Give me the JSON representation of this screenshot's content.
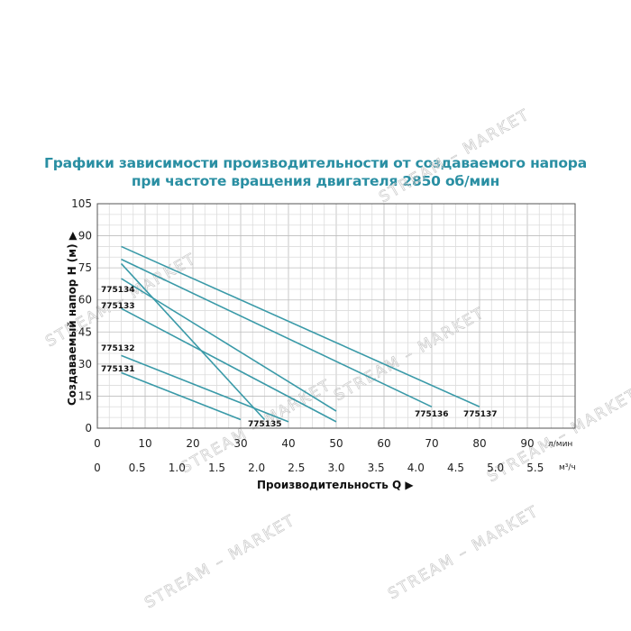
{
  "chart_data": {
    "type": "line",
    "title": "Графики зависимости производительности от создаваемого напора",
    "subtitle": "при частоте вращения двигателя 2850 об/мин",
    "ylabel": "Создаваемый напор H (м) ▶",
    "xlabel": "Производительность Q ▶",
    "x_unit_top": "л/мин",
    "x_unit_bottom": "м³/ч",
    "ylim": [
      0,
      105
    ],
    "xlim": [
      0,
      100
    ],
    "grid": true,
    "y_ticks": [
      "0",
      "15",
      "30",
      "45",
      "60",
      "75",
      "90",
      "105"
    ],
    "x_ticks_lmin": [
      "0",
      "10",
      "20",
      "30",
      "40",
      "50",
      "60",
      "70",
      "80",
      "90"
    ],
    "x_ticks_m3h": [
      "0",
      "0.5",
      "1.0",
      "1.5",
      "2.0",
      "2.5",
      "3.0",
      "3.5",
      "4.0",
      "4.5",
      "5.0",
      "5.5"
    ],
    "series": [
      {
        "name": "775131",
        "x": [
          5,
          30
        ],
        "y": [
          26,
          4
        ]
      },
      {
        "name": "775132",
        "x": [
          5,
          40
        ],
        "y": [
          34,
          3
        ]
      },
      {
        "name": "775133",
        "x": [
          5,
          50
        ],
        "y": [
          56,
          3
        ]
      },
      {
        "name": "775134",
        "x": [
          5,
          50
        ],
        "y": [
          70,
          8
        ]
      },
      {
        "name": "775135",
        "x": [
          5,
          35
        ],
        "y": [
          77,
          4
        ]
      },
      {
        "name": "775136",
        "x": [
          5,
          70
        ],
        "y": [
          79,
          10
        ]
      },
      {
        "name": "775137",
        "x": [
          5,
          80
        ],
        "y": [
          85,
          10
        ]
      }
    ]
  },
  "watermark": {
    "text": "STREAM – MARKET"
  },
  "colors": {
    "line": "#3a9aa8",
    "title": "#2a8fa3",
    "grid": "#c8c8c8"
  }
}
